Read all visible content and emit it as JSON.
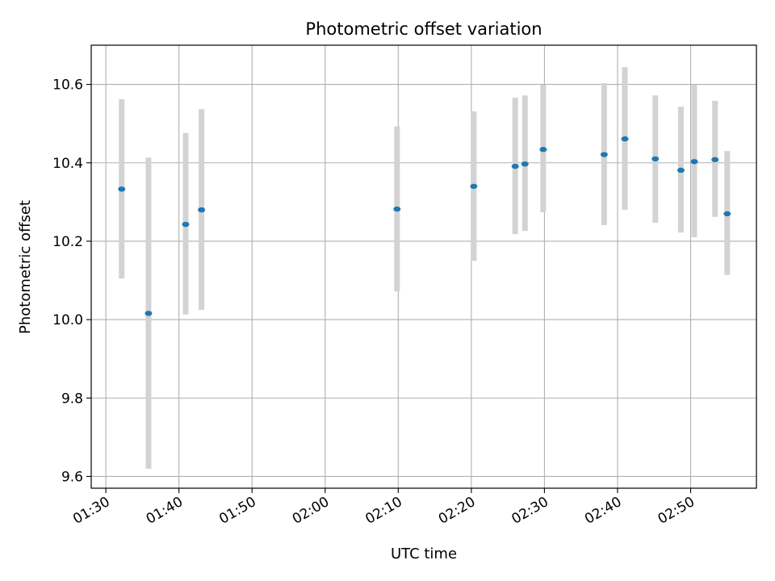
{
  "chart_data": {
    "type": "scatter",
    "title": "Photometric offset variation",
    "xlabel": "UTC time",
    "ylabel": "Photometric offset",
    "xlim": [
      "01:28",
      "02:59"
    ],
    "ylim": [
      9.57,
      10.7
    ],
    "grid": true,
    "x_ticks": [
      "01:30",
      "01:40",
      "01:50",
      "02:00",
      "02:10",
      "02:20",
      "02:30",
      "02:40",
      "02:50"
    ],
    "y_ticks": [
      "9.6",
      "9.8",
      "10.0",
      "10.2",
      "10.4",
      "10.6"
    ],
    "point_color": "#1f77b4",
    "errorbar_color": "#d3d3d3",
    "points": [
      {
        "x": "01:32:10",
        "y": 10.333,
        "low": 10.105,
        "high": 10.562
      },
      {
        "x": "01:35:50",
        "y": 10.016,
        "low": 9.62,
        "high": 10.413
      },
      {
        "x": "01:40:55",
        "y": 10.243,
        "low": 10.013,
        "high": 10.476
      },
      {
        "x": "01:43:05",
        "y": 10.28,
        "low": 10.025,
        "high": 10.537
      },
      {
        "x": "02:09:50",
        "y": 10.282,
        "low": 10.072,
        "high": 10.493
      },
      {
        "x": "02:20:20",
        "y": 10.34,
        "low": 10.15,
        "high": 10.531
      },
      {
        "x": "02:26:00",
        "y": 10.391,
        "low": 10.218,
        "high": 10.566
      },
      {
        "x": "02:27:20",
        "y": 10.397,
        "low": 10.226,
        "high": 10.572
      },
      {
        "x": "02:29:50",
        "y": 10.434,
        "low": 10.274,
        "high": 10.599
      },
      {
        "x": "02:38:10",
        "y": 10.421,
        "low": 10.241,
        "high": 10.603
      },
      {
        "x": "02:41:00",
        "y": 10.461,
        "low": 10.28,
        "high": 10.644
      },
      {
        "x": "02:45:10",
        "y": 10.41,
        "low": 10.247,
        "high": 10.572
      },
      {
        "x": "02:48:40",
        "y": 10.381,
        "low": 10.222,
        "high": 10.543
      },
      {
        "x": "02:50:30",
        "y": 10.403,
        "low": 10.21,
        "high": 10.599
      },
      {
        "x": "02:53:20",
        "y": 10.408,
        "low": 10.262,
        "high": 10.558
      },
      {
        "x": "02:55:00",
        "y": 10.27,
        "low": 10.114,
        "high": 10.43
      }
    ]
  }
}
